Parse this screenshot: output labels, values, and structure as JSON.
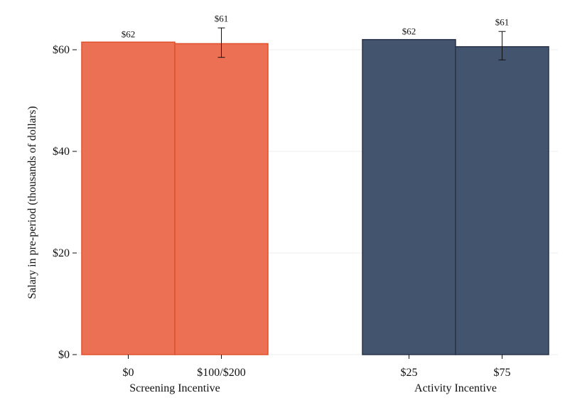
{
  "chart_data": {
    "type": "bar",
    "ylabel": "Salary in pre-period (thousands of dollars)",
    "ylim": [
      0,
      70
    ],
    "yticks": [
      0,
      20,
      40,
      60
    ],
    "ytick_labels": [
      "$0",
      "$20",
      "$40",
      "$60"
    ],
    "grid": true,
    "groups": [
      {
        "label": "Screening Incentive",
        "color": "#ec7053",
        "edge_color": "#e1502c",
        "bars": [
          {
            "category": "$0",
            "value": 61.5,
            "value_label": "$62"
          },
          {
            "category": "$100/$200",
            "value": 61.2,
            "value_label": "$61",
            "error_low": 58.5,
            "error_high": 64.3
          }
        ]
      },
      {
        "label": "Activity Incentive",
        "color": "#43546f",
        "edge_color": "#2a3448",
        "bars": [
          {
            "category": "$25",
            "value": 62.0,
            "value_label": "$62"
          },
          {
            "category": "$75",
            "value": 60.6,
            "value_label": "$61",
            "error_low": 58.0,
            "error_high": 63.6
          }
        ]
      }
    ]
  }
}
